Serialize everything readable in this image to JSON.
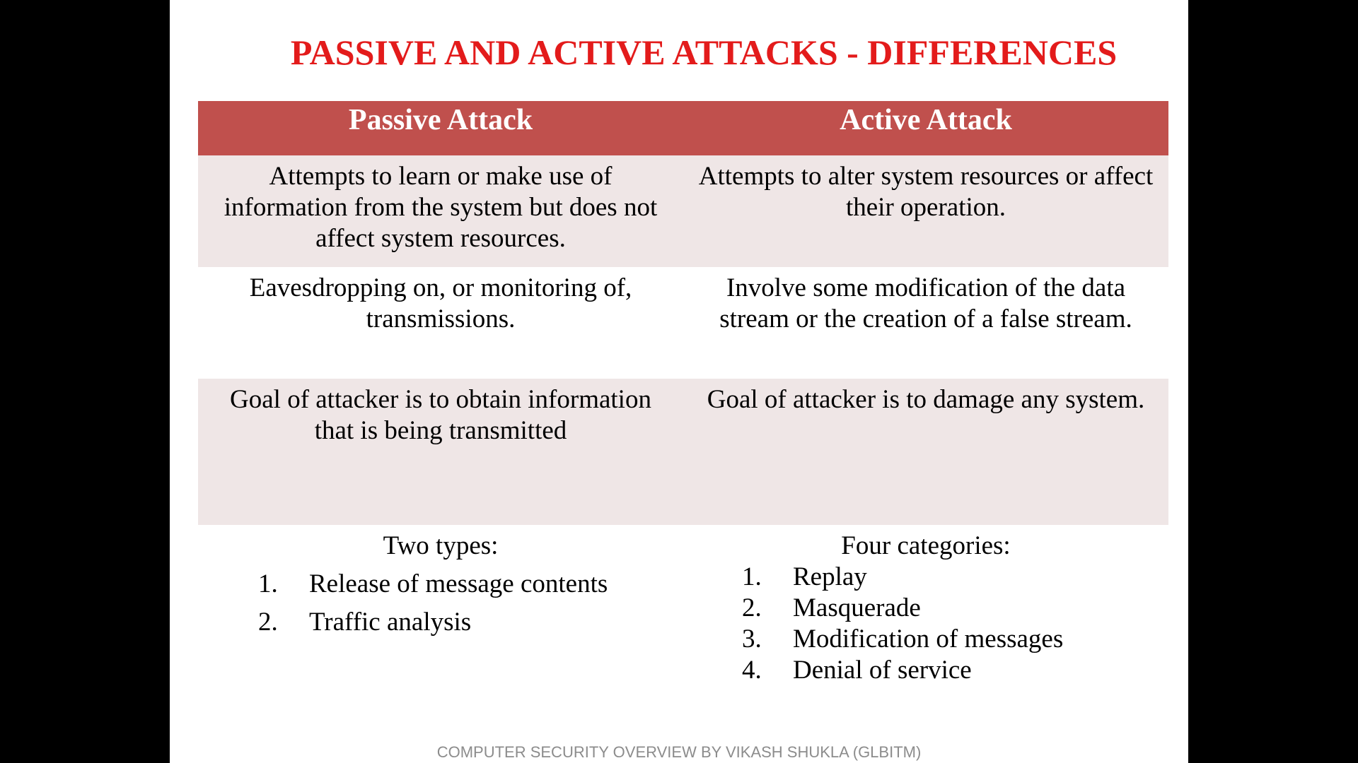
{
  "slide": {
    "title": "PASSIVE AND ACTIVE ATTACKS - DIFFERENCES",
    "footer": "COMPUTER SECURITY OVERVIEW BY VIKASH SHUKLA (GLBITM)"
  },
  "table": {
    "headers": [
      "Passive Attack",
      "Active Attack"
    ],
    "rows": [
      {
        "passive": "Attempts to learn or make use of information from the system but does not affect system resources.",
        "active": "Attempts to alter system resources or affect their operation."
      },
      {
        "passive": "Eavesdropping on, or monitoring of, transmissions.",
        "active": "Involve some modification of the data stream or the creation of a false stream."
      },
      {
        "passive": "Goal of attacker is to obtain information that is being transmitted",
        "active": "Goal of attacker is to damage any system."
      }
    ],
    "types": {
      "passive_intro": "Two types:",
      "passive_items": [
        {
          "num": "1.",
          "text": "Release of message contents"
        },
        {
          "num": "2.",
          "text": "Traffic analysis"
        }
      ],
      "active_intro": "Four categories:",
      "active_items": [
        {
          "num": "1.",
          "text": "Replay"
        },
        {
          "num": "2.",
          "text": "Masquerade"
        },
        {
          "num": "3.",
          "text": "Modification of messages"
        },
        {
          "num": "4.",
          "text": "Denial of service"
        }
      ]
    }
  },
  "colors": {
    "title": "#e31b1b",
    "header_bg": "#c0504d",
    "shaded_row": "#efe6e6",
    "footer_text": "#8c8c8c"
  }
}
